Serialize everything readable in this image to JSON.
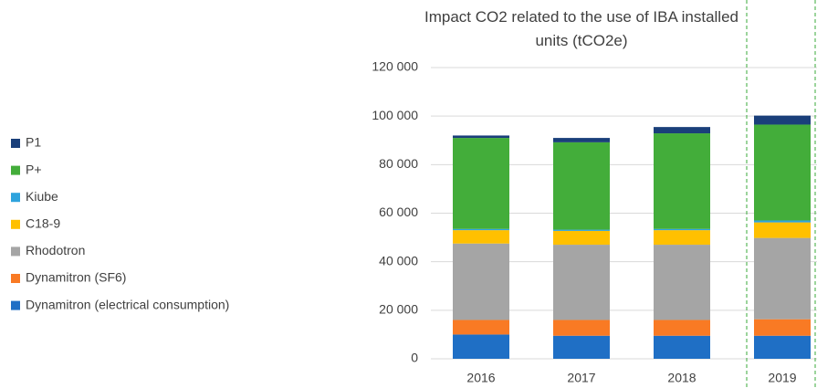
{
  "chart_data": {
    "type": "stacked_bar",
    "title": "Impact CO2 related to the use of IBA installed units (tCO2e)",
    "categories": [
      "2016",
      "2017",
      "2018",
      "2019"
    ],
    "series": [
      {
        "name": "Dynamitron (electrical consumption)",
        "color": "#1f6fc5",
        "values": [
          10000,
          9500,
          9500,
          9500
        ]
      },
      {
        "name": "Dynamitron (SF6)",
        "color": "#f97a24",
        "values": [
          6000,
          6500,
          6500,
          6800
        ]
      },
      {
        "name": "Rhodotron",
        "color": "#a5a5a5",
        "values": [
          31500,
          31000,
          31000,
          33500
        ]
      },
      {
        "name": "C18-9",
        "color": "#ffc000",
        "values": [
          5500,
          5700,
          6000,
          6400
        ]
      },
      {
        "name": "Kiube",
        "color": "#2ea3dd",
        "values": [
          500,
          500,
          500,
          800
        ]
      },
      {
        "name": "P+",
        "color": "#43ad3a",
        "values": [
          37500,
          36000,
          39400,
          39500
        ]
      },
      {
        "name": "P1",
        "color": "#1a3f7a",
        "values": [
          1000,
          1800,
          2600,
          3700
        ]
      }
    ],
    "ylim": [
      0,
      120000
    ],
    "yticks": [
      0,
      {
        "value": 20000,
        "label": "20 000"
      },
      {
        "value": 40000,
        "label": "40 000"
      },
      {
        "value": 60000,
        "label": "60 000"
      },
      {
        "value": 80000,
        "label": "80 000"
      },
      {
        "value": 100000,
        "label": "100 000"
      },
      {
        "value": 120000,
        "label": "120 000"
      }
    ],
    "grid": true
  }
}
